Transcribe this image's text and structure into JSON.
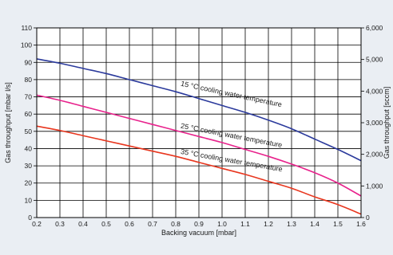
{
  "chart_data": {
    "type": "line",
    "title": "",
    "xlabel": "Backing vacuum [mbar]",
    "ylabel": "Gas throughput [mbar l/s]",
    "y2label": "Gas throughput [sccm]",
    "xlim": [
      0.2,
      1.6
    ],
    "ylim": [
      0,
      110
    ],
    "y2lim": [
      0,
      6000
    ],
    "x_ticks": [
      "0.2",
      "0.3",
      "0.4",
      "0.5",
      "0.6",
      "0.7",
      "0.8",
      "0.9",
      "1.0",
      "1.1",
      "1.2",
      "1.3",
      "1.4",
      "1.5",
      "1.6"
    ],
    "y_ticks": [
      "0",
      "10",
      "20",
      "30",
      "40",
      "50",
      "60",
      "70",
      "80",
      "90",
      "100",
      "110"
    ],
    "y2_ticks": [
      "0",
      "1,000",
      "2,000",
      "3,000",
      "4,000",
      "5,000",
      "6,000"
    ],
    "grid": true,
    "series": [
      {
        "name": "15 °C cooling water temperature",
        "color": "#2b3a9c",
        "x": [
          0.2,
          0.3,
          0.4,
          0.5,
          0.6,
          0.7,
          0.8,
          0.9,
          1.0,
          1.1,
          1.2,
          1.3,
          1.4,
          1.5,
          1.6
        ],
        "y": [
          92,
          89.5,
          86.5,
          83.5,
          80,
          76.5,
          73,
          69,
          65,
          61,
          56.5,
          51.5,
          45.5,
          39.5,
          33
        ]
      },
      {
        "name": "25 °C cooling water temperature",
        "color": "#e8228c",
        "x": [
          0.2,
          0.3,
          0.4,
          0.5,
          0.6,
          0.7,
          0.8,
          0.9,
          1.0,
          1.1,
          1.2,
          1.3,
          1.4,
          1.5,
          1.6
        ],
        "y": [
          71,
          68,
          64.5,
          61,
          57.5,
          54,
          50.5,
          47,
          43.5,
          39.5,
          35.5,
          31,
          26,
          20,
          12.5
        ]
      },
      {
        "name": "35 °C cooling water temperature",
        "color": "#e8361e",
        "x": [
          0.2,
          0.3,
          0.4,
          0.5,
          0.6,
          0.7,
          0.8,
          0.9,
          1.0,
          1.1,
          1.2,
          1.3,
          1.4,
          1.5,
          1.6
        ],
        "y": [
          53,
          50.5,
          47.5,
          44.5,
          41.5,
          38.5,
          35.5,
          32,
          28.5,
          25,
          21,
          17,
          12,
          7.5,
          2
        ]
      }
    ],
    "annotations": [
      {
        "text": "15 °C cooling water temperature",
        "x": 0.82,
        "y": 76.5,
        "angle": 12
      },
      {
        "text": "25 °C cooling water temperature",
        "x": 0.82,
        "y": 52,
        "angle": 11
      },
      {
        "text": "35 °C cooling water temperature",
        "x": 0.82,
        "y": 37,
        "angle": 10
      }
    ]
  }
}
